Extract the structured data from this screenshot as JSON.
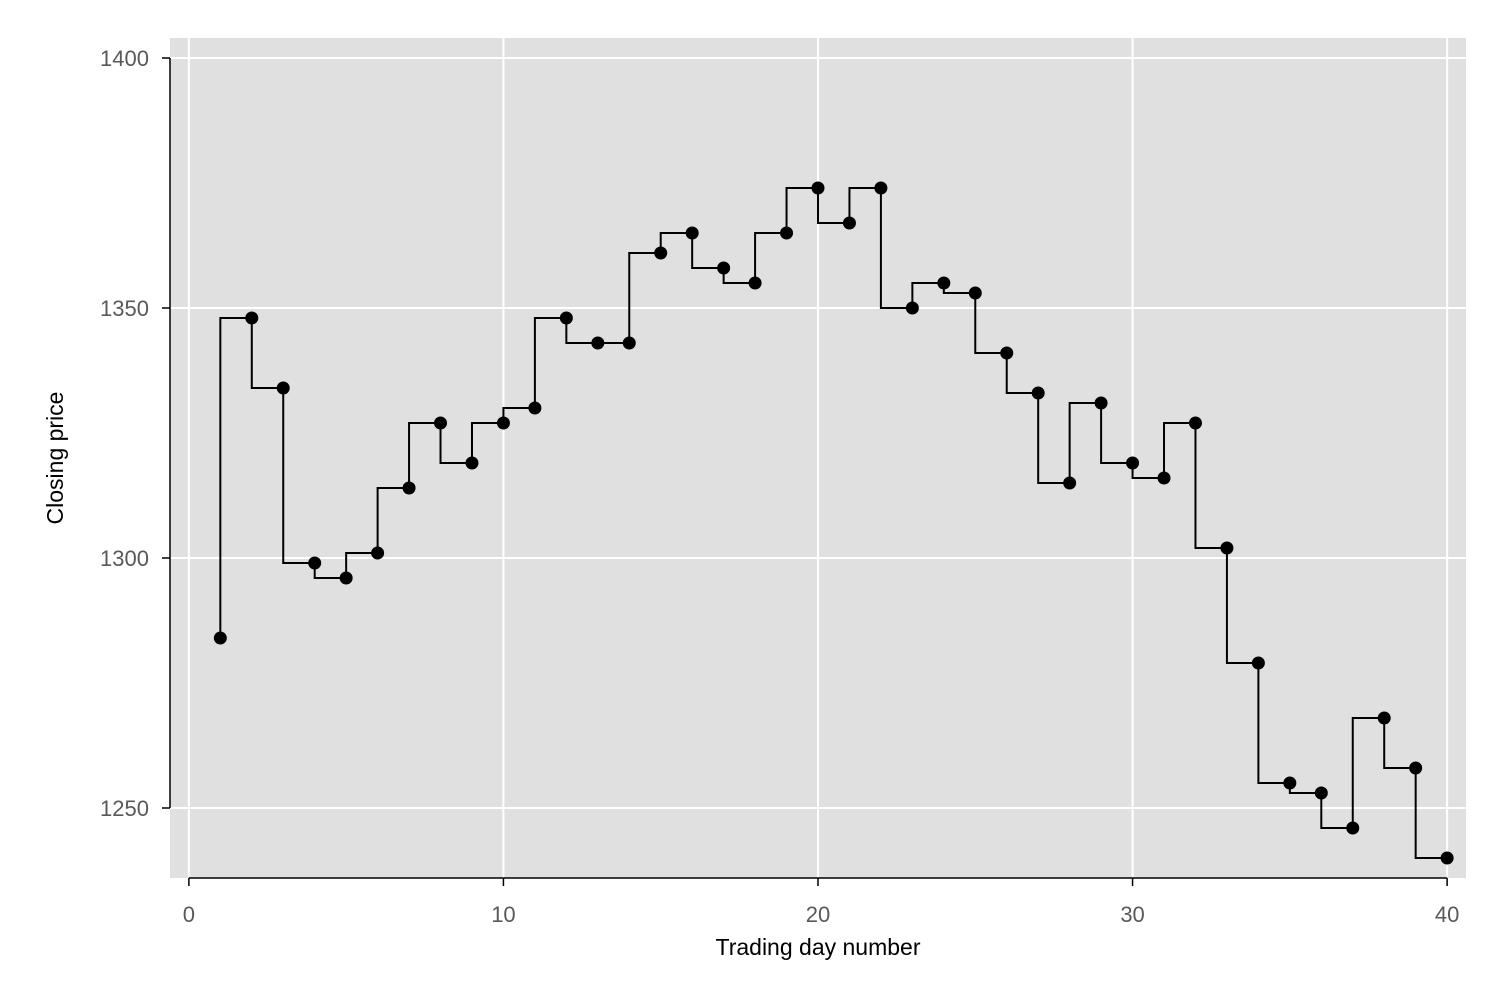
{
  "chart_data": {
    "type": "line",
    "step": true,
    "markers": true,
    "title": "",
    "xlabel": "Trading day number",
    "ylabel": "Closing price",
    "xlim": [
      -0.6,
      40.6
    ],
    "ylim": [
      1236,
      1404
    ],
    "xticks": [
      0,
      10,
      20,
      30,
      40
    ],
    "yticks": [
      1250,
      1300,
      1350,
      1400
    ],
    "grid": true,
    "legend": "none",
    "colors": {
      "panel": "#e0e0e0",
      "grid": "#ffffff",
      "line": "#000000",
      "tick_label": "#595959"
    },
    "series": [
      {
        "x": [
          1,
          2,
          3,
          4,
          5,
          6,
          7,
          8,
          9,
          10,
          11,
          12,
          13,
          14,
          15,
          16,
          17,
          18,
          19,
          20,
          21,
          22,
          23,
          24,
          25,
          26,
          27,
          28,
          29,
          30,
          31,
          32,
          33,
          34,
          35,
          36,
          37,
          38,
          39,
          40
        ],
        "values": [
          1284,
          1348,
          1334,
          1299,
          1296,
          1301,
          1314,
          1327,
          1319,
          1327,
          1330,
          1348,
          1343,
          1343,
          1361,
          1365,
          1358,
          1355,
          1365,
          1374,
          1367,
          1374,
          1350,
          1355,
          1353,
          1341,
          1333,
          1315,
          1331,
          1319,
          1316,
          1327,
          1302,
          1279,
          1255,
          1253,
          1246,
          1268,
          1258,
          1240
        ]
      }
    ]
  }
}
